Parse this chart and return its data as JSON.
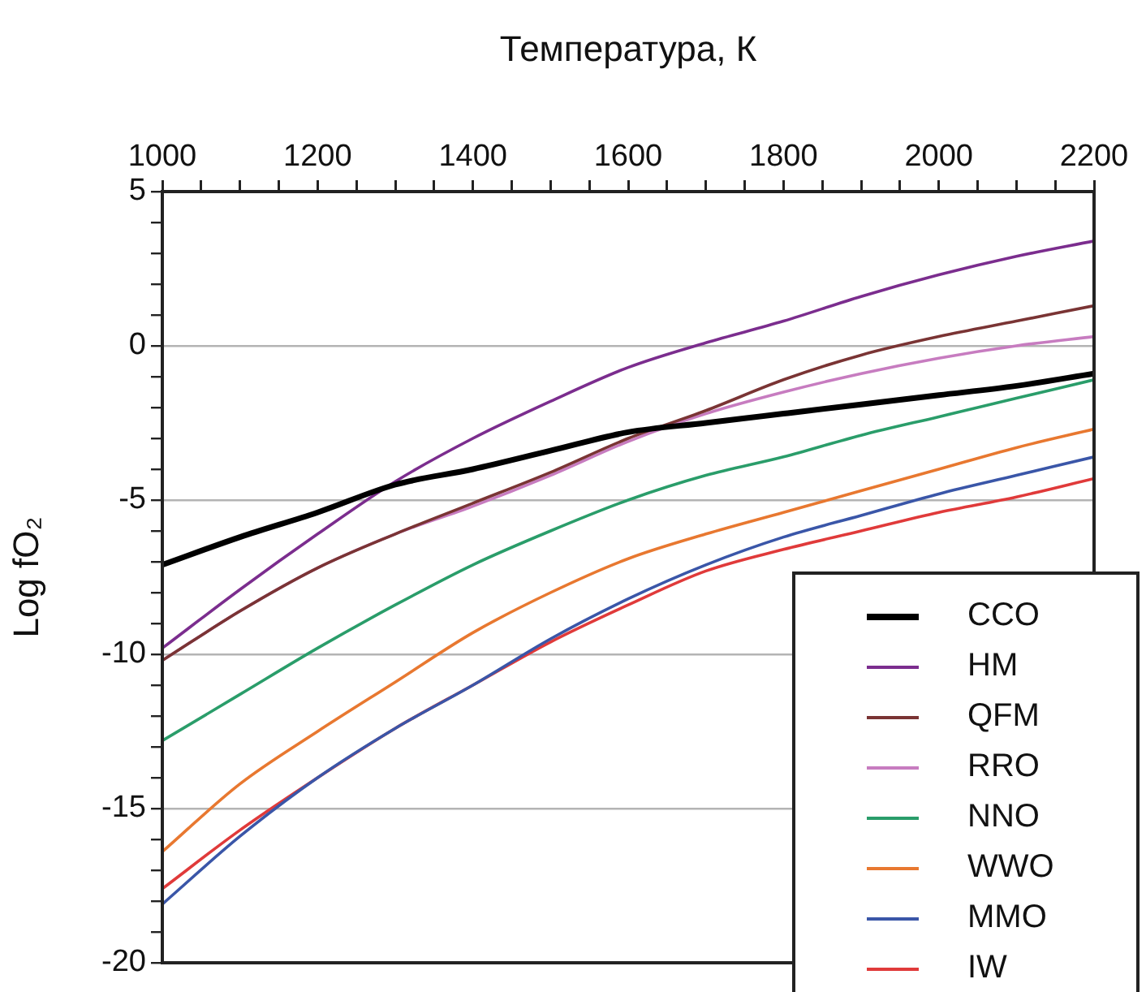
{
  "chart_data": {
    "type": "line",
    "xlabel": "Температура, К",
    "ylabel": "Log fO₂",
    "x": [
      1000,
      1100,
      1200,
      1300,
      1400,
      1500,
      1600,
      1700,
      1800,
      1900,
      2000,
      2100,
      2200
    ],
    "series": [
      {
        "name": "CCO",
        "color": "#000000",
        "values": [
          -7.1,
          -6.2,
          -5.4,
          -4.5,
          -4.0,
          -3.4,
          -2.8,
          -2.5,
          -2.2,
          -1.9,
          -1.6,
          -1.3,
          -0.9
        ]
      },
      {
        "name": "HM",
        "color": "#7b2d8e",
        "values": [
          -9.8,
          -7.9,
          -6.1,
          -4.4,
          -3.0,
          -1.8,
          -0.7,
          0.1,
          0.8,
          1.6,
          2.3,
          2.9,
          3.4
        ]
      },
      {
        "name": "QFM",
        "color": "#7a3434",
        "values": [
          -10.2,
          -8.6,
          -7.2,
          -6.1,
          -5.1,
          -4.1,
          -3.0,
          -2.1,
          -1.1,
          -0.3,
          0.3,
          0.8,
          1.3
        ]
      },
      {
        "name": "RRO",
        "color": "#c77cc0",
        "values": [
          -10.2,
          -8.6,
          -7.2,
          -6.1,
          -5.2,
          -4.2,
          -3.1,
          -2.2,
          -1.5,
          -0.9,
          -0.4,
          0.0,
          0.3
        ]
      },
      {
        "name": "NNO",
        "color": "#2a9d6a",
        "values": [
          -12.8,
          -11.3,
          -9.8,
          -8.4,
          -7.1,
          -6.0,
          -5.0,
          -4.2,
          -3.6,
          -2.9,
          -2.3,
          -1.7,
          -1.1
        ]
      },
      {
        "name": "WWO",
        "color": "#e87830",
        "values": [
          -16.4,
          -14.2,
          -12.5,
          -10.9,
          -9.3,
          -8.0,
          -6.9,
          -6.1,
          -5.4,
          -4.7,
          -4.0,
          -3.3,
          -2.7
        ]
      },
      {
        "name": "MMO",
        "color": "#3a56a8",
        "values": [
          -18.1,
          -15.9,
          -14.0,
          -12.4,
          -11.0,
          -9.5,
          -8.2,
          -7.1,
          -6.2,
          -5.5,
          -4.8,
          -4.2,
          -3.6
        ]
      },
      {
        "name": "IW",
        "color": "#e03a3a",
        "values": [
          -17.6,
          -15.7,
          -14.0,
          -12.4,
          -11.0,
          -9.6,
          -8.4,
          -7.3,
          -6.6,
          -6.0,
          -5.4,
          -4.9,
          -4.3
        ]
      }
    ],
    "xlim": [
      1000,
      2200
    ],
    "xticks": [
      1000,
      {
        "value": 1050,
        "label": null
      },
      {
        "value": 1100,
        "label": null
      },
      {
        "value": 1150,
        "label": null
      },
      1200,
      {
        "value": 1250,
        "label": null
      },
      {
        "value": 1300,
        "label": null
      },
      {
        "value": 1350,
        "label": null
      },
      1400,
      {
        "value": 1450,
        "label": null
      },
      {
        "value": 1500,
        "label": null
      },
      {
        "value": 1550,
        "label": null
      },
      1600,
      {
        "value": 1650,
        "label": null
      },
      {
        "value": 1700,
        "label": null
      },
      {
        "value": 1750,
        "label": null
      },
      1800,
      {
        "value": 1850,
        "label": null
      },
      {
        "value": 1900,
        "label": null
      },
      {
        "value": 1950,
        "label": null
      },
      2000,
      {
        "value": 2050,
        "label": null
      },
      {
        "value": 2100,
        "label": null
      },
      {
        "value": 2150,
        "label": null
      },
      2200
    ],
    "ylim": [
      -20,
      5
    ],
    "yticks": [
      -20,
      {
        "value": -19,
        "label": null
      },
      {
        "value": -18,
        "label": null
      },
      {
        "value": -17,
        "label": null
      },
      {
        "value": -16,
        "label": null
      },
      -15,
      {
        "value": -14,
        "label": null
      },
      {
        "value": -13,
        "label": null
      },
      {
        "value": -12,
        "label": null
      },
      {
        "value": -11,
        "label": null
      },
      -10,
      {
        "value": -9,
        "label": null
      },
      {
        "value": -8,
        "label": null
      },
      {
        "value": -7,
        "label": null
      },
      {
        "value": -6,
        "label": null
      },
      -5,
      {
        "value": -4,
        "label": null
      },
      {
        "value": -3,
        "label": null
      },
      {
        "value": -2,
        "label": null
      },
      {
        "value": -1,
        "label": null
      },
      0,
      {
        "value": 1,
        "label": null
      },
      {
        "value": 2,
        "label": null
      },
      {
        "value": 3,
        "label": null
      },
      {
        "value": 4,
        "label": null
      },
      5
    ],
    "grid": "y",
    "legend": "bottom right",
    "marker": "none",
    "line_style": "solid"
  }
}
